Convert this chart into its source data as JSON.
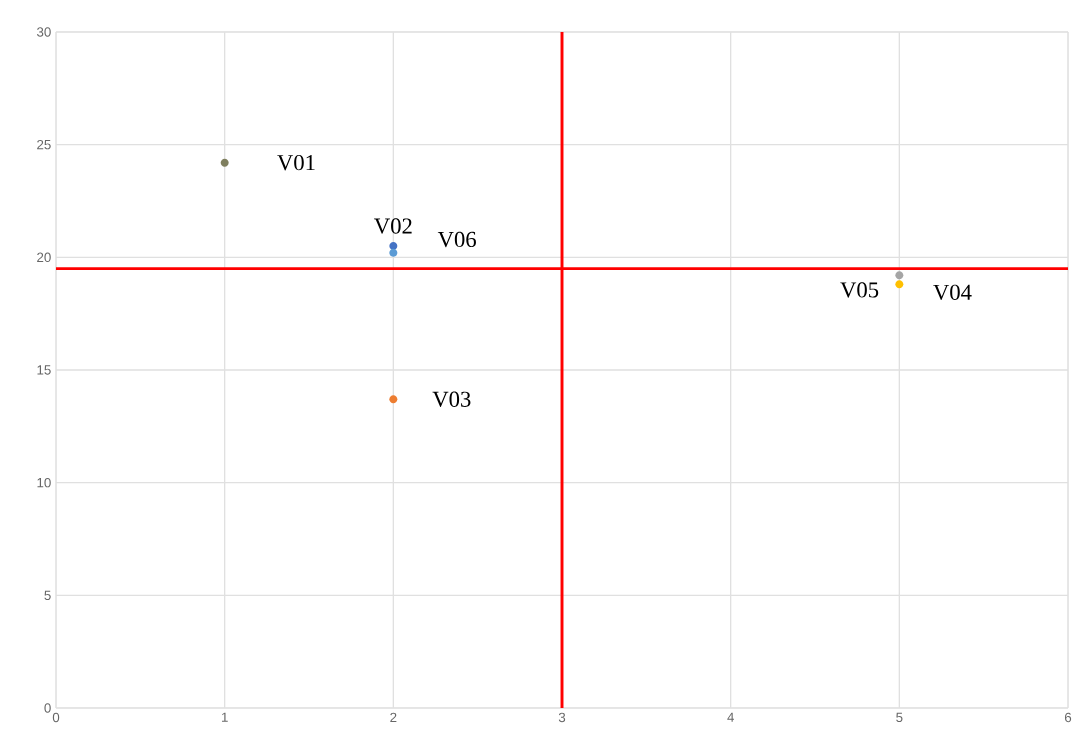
{
  "chart_data": {
    "type": "scatter",
    "series": [
      {
        "name": "V01",
        "color": "#7f7f5f",
        "x": [
          1
        ],
        "values": [
          24.2
        ]
      },
      {
        "name": "V02",
        "color": "#4472c4",
        "x": [
          2
        ],
        "values": [
          20.5
        ]
      },
      {
        "name": "V03",
        "color": "#ed7d31",
        "x": [
          2
        ],
        "values": [
          13.7
        ]
      },
      {
        "name": "V04",
        "color": "#ffc000",
        "x": [
          5
        ],
        "values": [
          18.8
        ]
      },
      {
        "name": "V05",
        "color": "#a5a5a5",
        "x": [
          5
        ],
        "values": [
          19.2
        ]
      },
      {
        "name": "V06",
        "color": "#5b9bd5",
        "x": [
          2
        ],
        "values": [
          20.2
        ]
      }
    ],
    "xlim": [
      0,
      6
    ],
    "ylim": [
      0,
      30
    ],
    "xticks": [
      0,
      1,
      2,
      3,
      4,
      5,
      6
    ],
    "yticks": [
      0,
      5,
      10,
      15,
      20,
      25,
      30
    ],
    "grid": true,
    "marker": "circle",
    "ref_lines": [
      {
        "axis": "x",
        "value": 3,
        "color": "#ff0000"
      },
      {
        "axis": "y",
        "value": 19.5,
        "color": "#ff0000"
      }
    ]
  }
}
